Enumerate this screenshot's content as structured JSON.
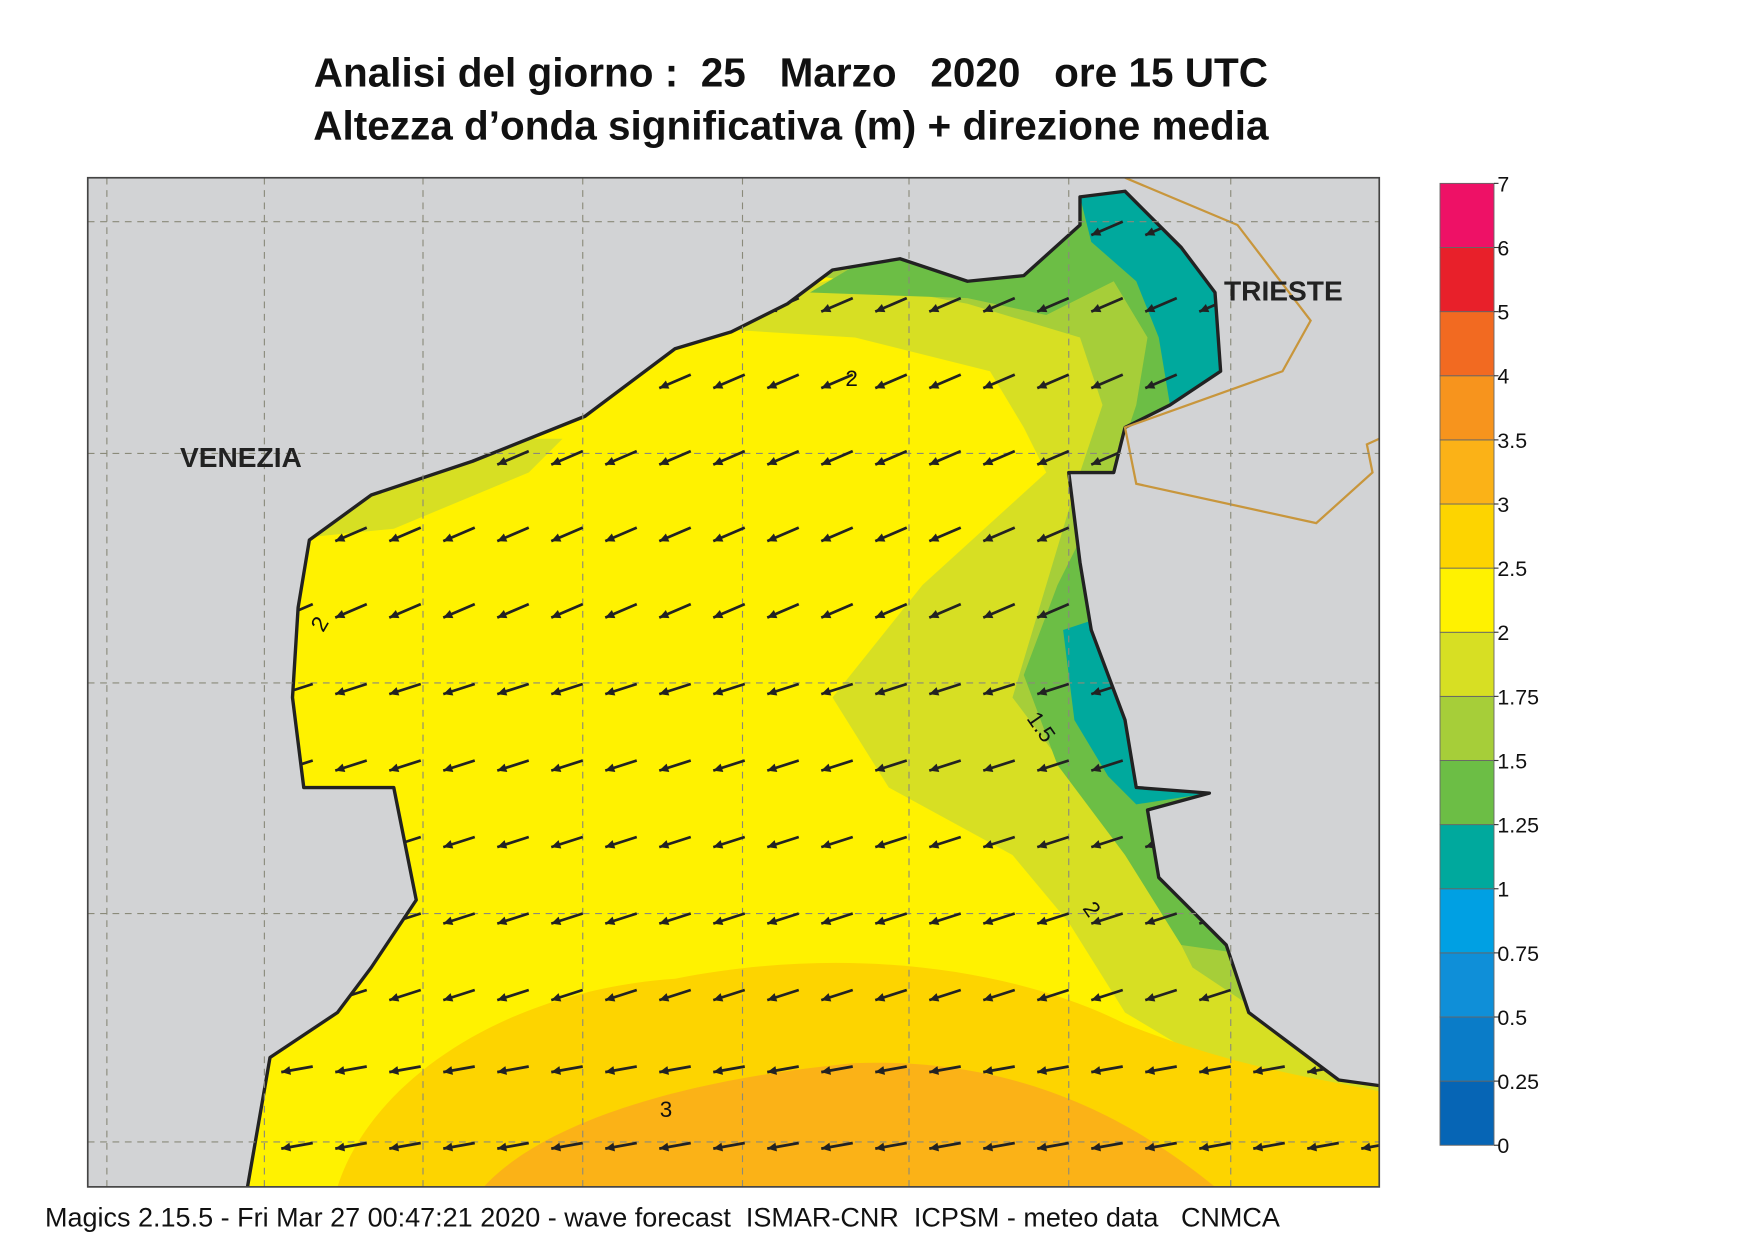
{
  "header": {
    "title_line1": "Analisi del giorno :  25   Marzo   2020   ore 15 UTC",
    "title_line2": "Altezza d’onda significativa (m) + direzione media"
  },
  "map": {
    "places": [
      "VENEZIA",
      "TRIESTE"
    ],
    "contour_labels": [
      "2",
      "2",
      "1.5",
      "2",
      "3"
    ]
  },
  "colorbar": {
    "levels": [
      0,
      0.25,
      0.5,
      0.75,
      1,
      1.25,
      1.5,
      1.75,
      2,
      2.5,
      3,
      3.5,
      4,
      5,
      6,
      7
    ],
    "colors": [
      "#0665b5",
      "#0a7cc8",
      "#0f8fd8",
      "#00a0e3",
      "#00a99d",
      "#6cbe45",
      "#a6ce39",
      "#d7df23",
      "#fff200",
      "#fdd400",
      "#fbb217",
      "#f7941d",
      "#f26a21",
      "#e8202a",
      "#ee1166"
    ]
  },
  "footer": "Magics 2.15.5 - Fri Mar 27 00:47:21 2020 - wave forecast  ISMAR-CNR  ICPSM - meteo data   CNMCA"
}
